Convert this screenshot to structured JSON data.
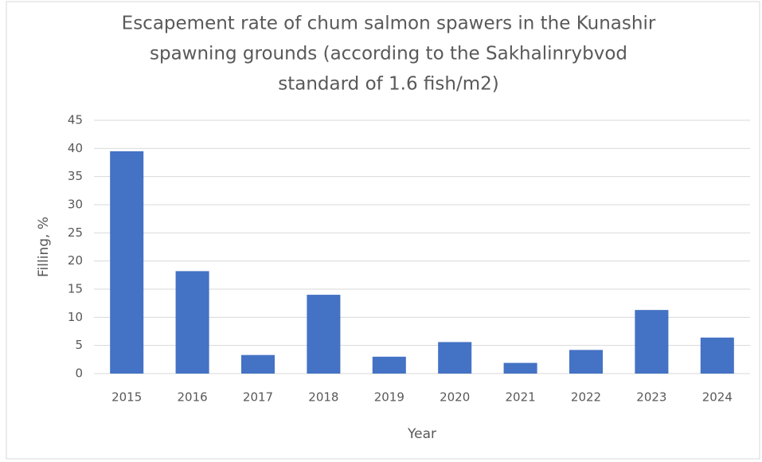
{
  "chart_data": {
    "type": "bar",
    "title": [
      "Escapement rate of chum salmon spawers in the Kunashir",
      "spawning grounds (according to the Sakhalinrybvod",
      "standard of 1.6 fish/m2)"
    ],
    "x_label": "Year",
    "y_label": "Filling, %",
    "categories": [
      "2015",
      "2016",
      "2017",
      "2018",
      "2019",
      "2020",
      "2021",
      "2022",
      "2023",
      "2024"
    ],
    "values": [
      39.5,
      18.2,
      3.3,
      14,
      3,
      5.6,
      1.9,
      4.2,
      11.3,
      6.4
    ],
    "color": "#4472c4",
    "ylim": [
      0,
      45
    ],
    "yticks": [
      0,
      5,
      10,
      15,
      20,
      25,
      30,
      35,
      40,
      45
    ],
    "grid": true
  }
}
